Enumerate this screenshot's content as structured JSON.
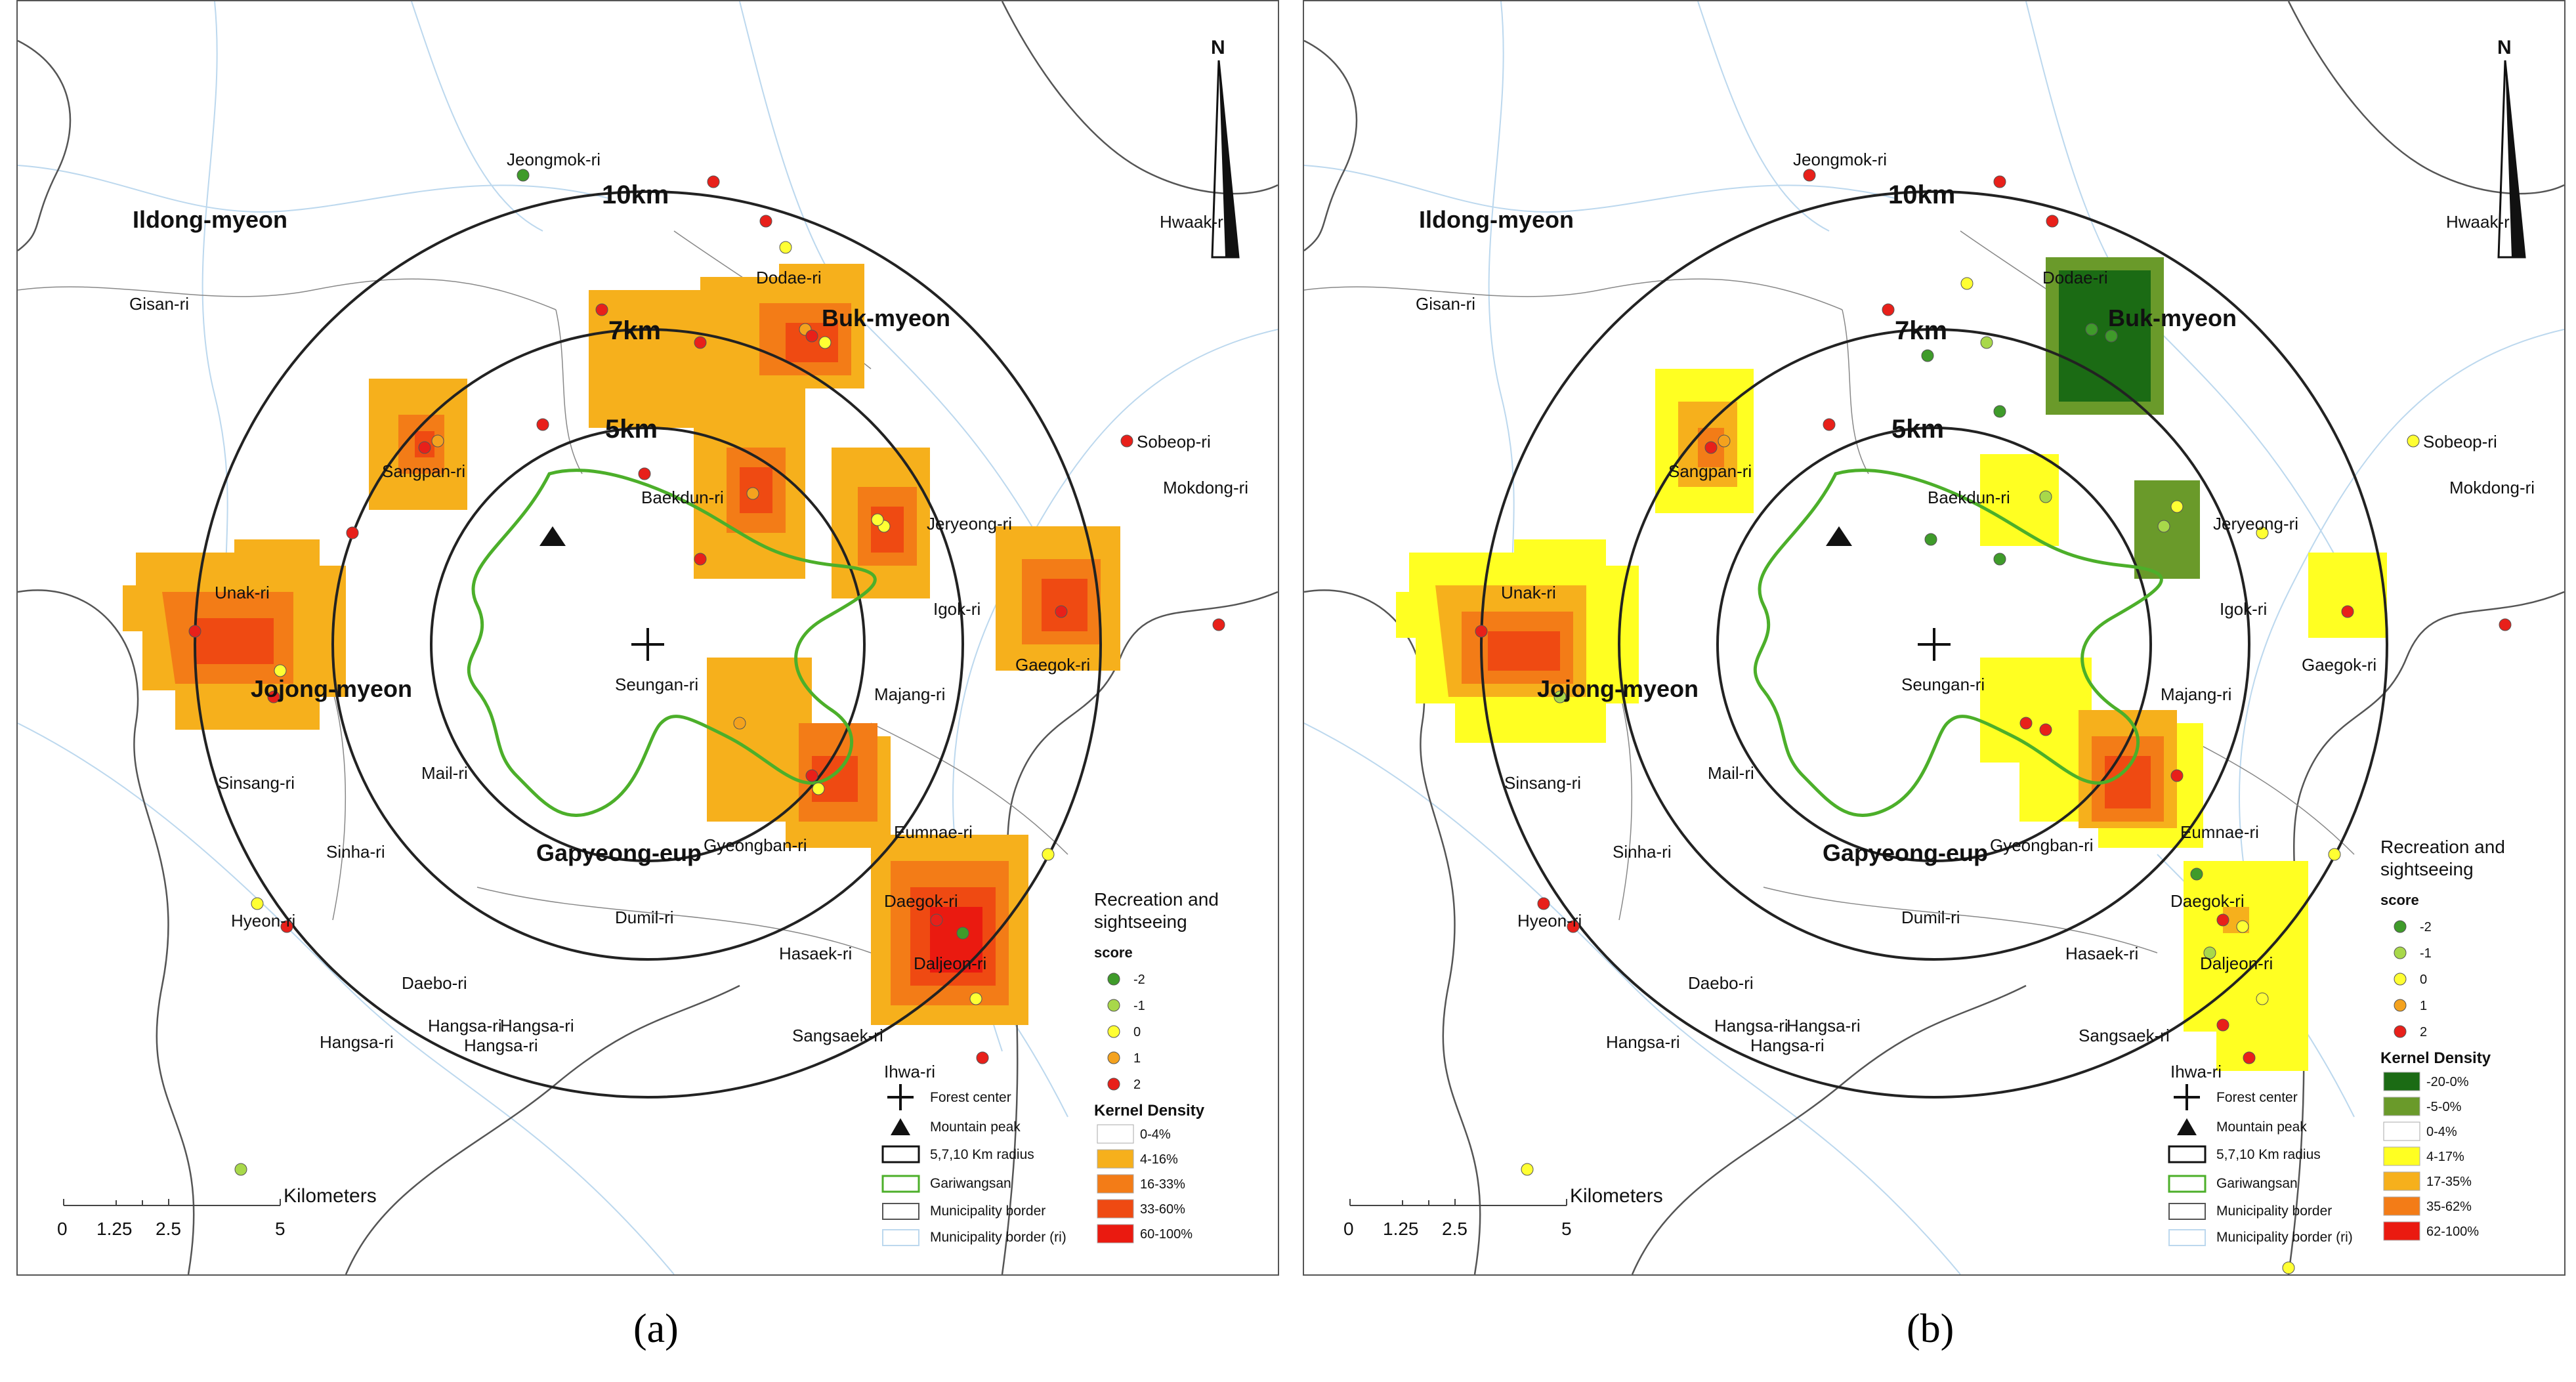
{
  "panels": [
    {
      "id": "a",
      "caption": "(a)",
      "legend_title": [
        "Recreation and",
        "sightseeing"
      ],
      "score_label": "score",
      "scores": [
        {
          "label": "-2",
          "color": "#3f9b2a"
        },
        {
          "label": "-1",
          "color": "#a8d84a"
        },
        {
          "label": "0",
          "color": "#ffff33"
        },
        {
          "label": "1",
          "color": "#f4a21e"
        },
        {
          "label": "2",
          "color": "#e8201a"
        }
      ],
      "kernel_title": "Kernel Density",
      "kernel_classes": [
        {
          "label": "0-4%",
          "color": "#ffffff"
        },
        {
          "label": "4-16%",
          "color": "#f6b01c"
        },
        {
          "label": "16-33%",
          "color": "#f37c17"
        },
        {
          "label": "33-60%",
          "color": "#ef4a12"
        },
        {
          "label": "60-100%",
          "color": "#ea1a10"
        }
      ]
    },
    {
      "id": "b",
      "caption": "(b)",
      "legend_title": [
        "Recreation and",
        "sightseeing"
      ],
      "score_label": "score",
      "scores": [
        {
          "label": "-2",
          "color": "#3f9b2a"
        },
        {
          "label": "-1",
          "color": "#a8d84a"
        },
        {
          "label": "0",
          "color": "#ffff33"
        },
        {
          "label": "1",
          "color": "#f4a21e"
        },
        {
          "label": "2",
          "color": "#e8201a"
        }
      ],
      "kernel_title": "Kernel Density",
      "kernel_classes": [
        {
          "label": "-20-0%",
          "color": "#1b6b14"
        },
        {
          "label": "-5-0%",
          "color": "#6a9a2a"
        },
        {
          "label": "0-4%",
          "color": "#ffffff"
        },
        {
          "label": "4-17%",
          "color": "#ffff22"
        },
        {
          "label": "17-35%",
          "color": "#f6b01c"
        },
        {
          "label": "35-62%",
          "color": "#f37c17"
        },
        {
          "label": "62-100%",
          "color": "#ea1a10"
        }
      ]
    }
  ],
  "map_labels": {
    "ilding": "Ildong-myeon",
    "jeongmok": "Jeongmok-ri",
    "hwaak": "Hwaak-ri",
    "gisan": "Gisan-ri",
    "dodae": "Dodae-ri",
    "bukmyeon": "Buk-myeon",
    "sobeop": "Sobeop-ri",
    "mokdong": "Mokdong-ri",
    "sangpan": "Sangpan-ri",
    "baekdun": "Baekdun-ri",
    "jeryeong": "Jeryeong-ri",
    "unak": "Unak-ri",
    "igok": "Igok-ri",
    "gaegok": "Gaegok-ri",
    "jojong": "Jojong-myeon",
    "seungan": "Seungan-ri",
    "majang": "Majang-ri",
    "mail": "Mail-ri",
    "sinsang": "Sinsang-ri",
    "eumnae": "Eumnae-ri",
    "sinha": "Sinha-ri",
    "gapyeong": "Gapyeong-eup",
    "gyeongban": "Gyeongban-ri",
    "daegok": "Daegok-ri",
    "hyeon": "Hyeon-ri",
    "dumil": "Dumil-ri",
    "hasaek": "Hasaek-ri",
    "daejeon": "Daljeon-ri",
    "daebo": "Daebo-ri",
    "hangsa1": "Hangsa-ri",
    "hangsa2": "Hangsa-ri",
    "hangsa3": "Hangsa-ri",
    "hangsa4": "Hangsa-ri",
    "sangsaek": "Sangsaek-ri",
    "ihwa": "Ihwa-ri"
  },
  "rings": {
    "r10": "10km",
    "r7": "7km",
    "r5": "5km"
  },
  "north": "N",
  "scale_bar": {
    "ticks": [
      "0",
      "1.25",
      "2.5",
      "5"
    ],
    "unit": "Kilometers"
  },
  "symbol_legend": {
    "forest_center": "Forest center",
    "mountain_peak": "Mountain peak",
    "radius": "5,7,10 Km radius",
    "gariwangsan": "Gariwangsan",
    "muni_border": "Municipality border",
    "muni_border_ri": "Municipality border (ri)"
  }
}
